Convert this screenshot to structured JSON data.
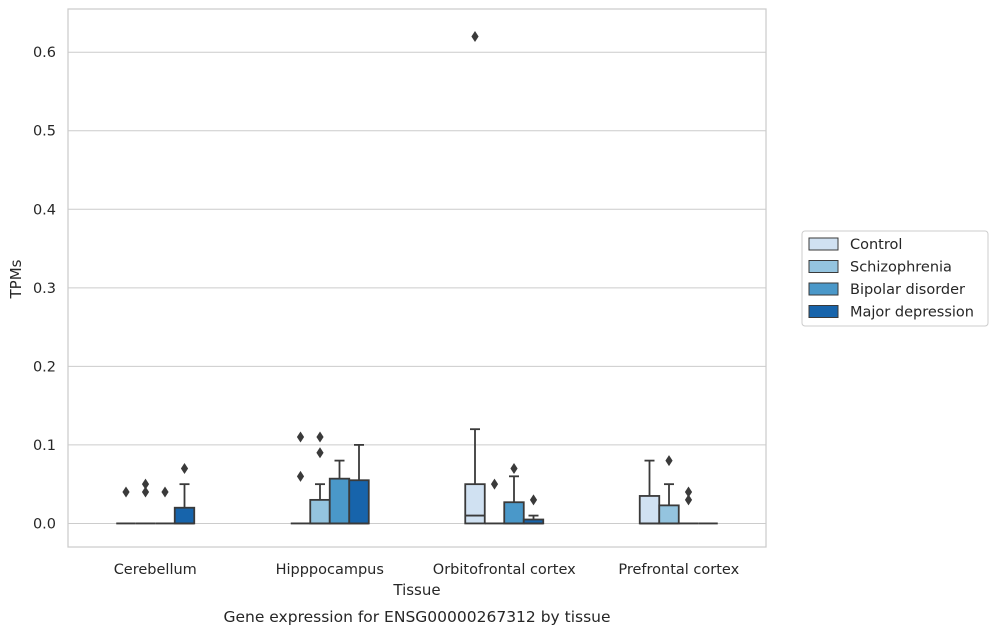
{
  "caption": "Gene expression for ENSG00000267312 by tissue",
  "chart_data": {
    "type": "box",
    "xlabel": "Tissue",
    "ylabel": "TPMs",
    "ylim": [
      -0.03,
      0.655
    ],
    "yticks": [
      "0.0",
      "0.1",
      "0.2",
      "0.3",
      "0.4",
      "0.5",
      "0.6"
    ],
    "grid": "horizontal",
    "legend_position": "right",
    "categories": [
      "Cerebellum",
      "Hipppocampus",
      "Orbitofrontal cortex",
      "Prefrontal cortex"
    ],
    "series": [
      {
        "name": "Control",
        "color": "#d0e1f2",
        "boxes": [
          {
            "q1": 0.0,
            "median": 0.0,
            "q3": 0.0,
            "whislo": 0.0,
            "whishi": 0.0,
            "fliers": [
              0.04
            ]
          },
          {
            "q1": 0.0,
            "median": 0.0,
            "q3": 0.0,
            "whislo": 0.0,
            "whishi": 0.0,
            "fliers": [
              0.06,
              0.11
            ]
          },
          {
            "q1": 0.0,
            "median": 0.01,
            "q3": 0.05,
            "whislo": 0.0,
            "whishi": 0.12,
            "fliers": [
              0.62
            ]
          },
          {
            "q1": 0.0,
            "median": 0.0,
            "q3": 0.035,
            "whislo": 0.0,
            "whishi": 0.08,
            "fliers": []
          }
        ]
      },
      {
        "name": "Schizophrenia",
        "color": "#94c4df",
        "boxes": [
          {
            "q1": 0.0,
            "median": 0.0,
            "q3": 0.0,
            "whislo": 0.0,
            "whishi": 0.0,
            "fliers": [
              0.04,
              0.05
            ]
          },
          {
            "q1": 0.0,
            "median": 0.0,
            "q3": 0.03,
            "whislo": 0.0,
            "whishi": 0.05,
            "fliers": [
              0.09,
              0.11
            ]
          },
          {
            "q1": 0.0,
            "median": 0.0,
            "q3": 0.0,
            "whislo": 0.0,
            "whishi": 0.0,
            "fliers": [
              0.05
            ]
          },
          {
            "q1": 0.0,
            "median": 0.0,
            "q3": 0.023,
            "whislo": 0.0,
            "whishi": 0.05,
            "fliers": [
              0.08
            ]
          }
        ]
      },
      {
        "name": "Bipolar disorder",
        "color": "#4a98c9",
        "boxes": [
          {
            "q1": 0.0,
            "median": 0.0,
            "q3": 0.0,
            "whislo": 0.0,
            "whishi": 0.0,
            "fliers": [
              0.04
            ]
          },
          {
            "q1": 0.0,
            "median": 0.0,
            "q3": 0.057,
            "whislo": 0.0,
            "whishi": 0.08,
            "fliers": []
          },
          {
            "q1": 0.0,
            "median": 0.0,
            "q3": 0.027,
            "whislo": 0.0,
            "whishi": 0.06,
            "fliers": [
              0.07
            ]
          },
          {
            "q1": 0.0,
            "median": 0.0,
            "q3": 0.0,
            "whislo": 0.0,
            "whishi": 0.0,
            "fliers": [
              0.03,
              0.04
            ]
          }
        ]
      },
      {
        "name": "Major depression",
        "color": "#1764ab",
        "boxes": [
          {
            "q1": 0.0,
            "median": 0.0,
            "q3": 0.02,
            "whislo": 0.0,
            "whishi": 0.05,
            "fliers": [
              0.07
            ]
          },
          {
            "q1": 0.0,
            "median": 0.0,
            "q3": 0.055,
            "whislo": 0.0,
            "whishi": 0.1,
            "fliers": []
          },
          {
            "q1": 0.0,
            "median": 0.0,
            "q3": 0.005,
            "whislo": 0.0,
            "whishi": 0.01,
            "fliers": [
              0.03
            ]
          },
          {
            "q1": 0.0,
            "median": 0.0,
            "q3": 0.0,
            "whislo": 0.0,
            "whishi": 0.0,
            "fliers": []
          }
        ]
      }
    ]
  }
}
